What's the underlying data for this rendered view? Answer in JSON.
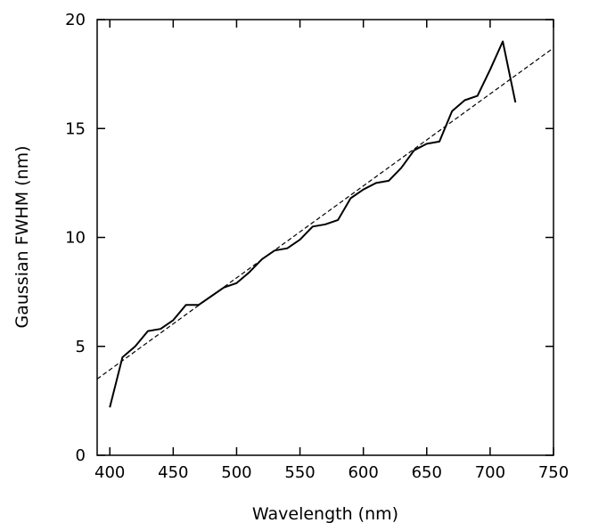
{
  "chart_data": {
    "type": "line",
    "xlabel": "Wavelength (nm)",
    "ylabel": "Gaussian FWHM (nm)",
    "xlim": [
      390,
      750
    ],
    "ylim": [
      0,
      20
    ],
    "xticks": [
      400,
      450,
      500,
      550,
      600,
      650,
      700,
      750
    ],
    "yticks": [
      0,
      5,
      10,
      15,
      20
    ],
    "grid": false,
    "series": [
      {
        "style": "solid",
        "color": "#000000",
        "x": [
          400,
          410,
          420,
          430,
          440,
          450,
          460,
          470,
          480,
          490,
          500,
          510,
          520,
          530,
          540,
          550,
          560,
          570,
          580,
          590,
          600,
          610,
          620,
          630,
          640,
          650,
          660,
          670,
          680,
          690,
          700,
          710,
          720
        ],
        "y": [
          2.2,
          4.5,
          5.0,
          5.7,
          5.8,
          6.2,
          6.9,
          6.9,
          7.3,
          7.7,
          7.9,
          8.4,
          9.0,
          9.4,
          9.5,
          9.9,
          10.5,
          10.6,
          10.8,
          11.8,
          12.2,
          12.5,
          12.6,
          13.2,
          14.0,
          14.3,
          14.4,
          15.8,
          16.3,
          16.5,
          17.7,
          19.0,
          16.2
        ]
      },
      {
        "style": "dashed",
        "color": "#000000",
        "x": [
          390,
          750
        ],
        "y": [
          3.5,
          18.7
        ]
      }
    ]
  }
}
